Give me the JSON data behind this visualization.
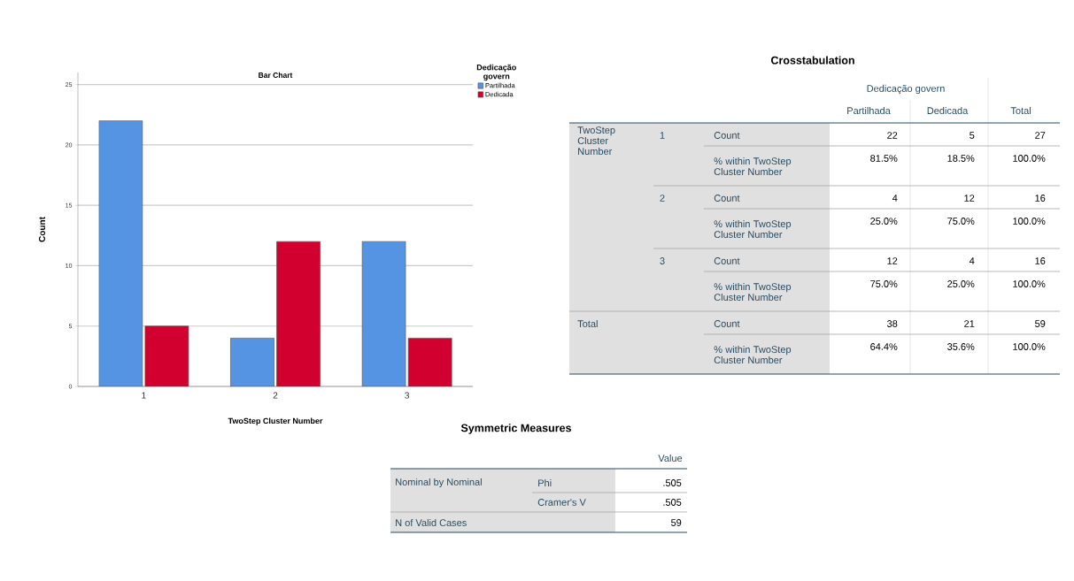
{
  "chart_data": [
    {
      "type": "bar",
      "title": "Bar Chart",
      "xlabel": "TwoStep Cluster Number",
      "ylabel": "Count",
      "legend_title": "Dedicação govern",
      "categories": [
        "1",
        "2",
        "3"
      ],
      "series": [
        {
          "name": "Partilhada",
          "color": "#5594e3",
          "values": [
            22,
            4,
            12
          ]
        },
        {
          "name": "Dedicada",
          "color": "#d1002f",
          "values": [
            5,
            12,
            4
          ]
        }
      ],
      "ylim": [
        0,
        26
      ],
      "yticks": [
        0,
        5,
        10,
        15,
        20,
        25
      ],
      "grid": "y",
      "legend": "top right"
    },
    {
      "type": "other",
      "title": "Crosstabulation",
      "annotations": [
        "Dedicação govern",
        "Partilhada",
        "Dedicada",
        "Total",
        "TwoStep Cluster Number",
        "1",
        "Count",
        "22",
        "5",
        "27",
        "% within TwoStep Cluster Number",
        "81.5%",
        "18.5%",
        "100.0%",
        "2",
        "Count",
        "4",
        "12",
        "16",
        "% within TwoStep Cluster Number",
        "25.0%",
        "75.0%",
        "100.0%",
        "3",
        "Count",
        "12",
        "4",
        "16",
        "% within TwoStep Cluster Number",
        "75.0%",
        "25.0%",
        "100.0%",
        "Total",
        "Count",
        "38",
        "21",
        "59",
        "% within TwoStep Cluster Number",
        "64.4%",
        "35.6%",
        "100.0%"
      ]
    },
    {
      "type": "other",
      "title": "Symmetric Measures",
      "annotations": [
        "Value",
        "Nominal by Nominal",
        "Phi",
        ".505",
        "Cramer's V",
        ".505",
        "N of Valid Cases",
        "59"
      ]
    }
  ]
}
